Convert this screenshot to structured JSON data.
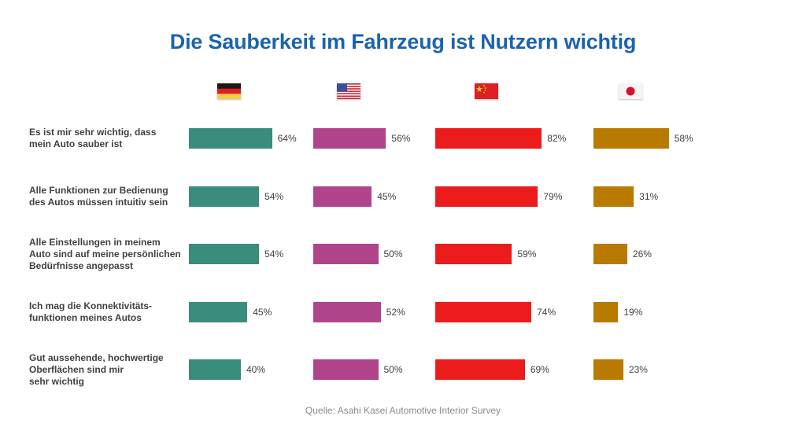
{
  "chart_data": {
    "type": "bar",
    "orientation": "horizontal",
    "title": "Die Sauberkeit im Fahrzeug ist Nutzern wichtig",
    "source": "Quelle: Asahi Kasei Automotive Interior Survey",
    "value_suffix": "%",
    "xlim": [
      0,
      100
    ],
    "grid": false,
    "categories": [
      "Es ist mir sehr wichtig, dass mein Auto sauber ist",
      "Alle Funktionen zur Bedienung des Autos müssen intuitiv sein",
      "Alle Einstellungen in meinem Auto sind auf meine persönlichen Bedürfnisse angepasst",
      "Ich mag die Konnektivitäts-funktionen meines Autos",
      "Gut aussehende, hochwertige Oberflächen sind mir sehr wichtig"
    ],
    "category_lines": [
      [
        "Es ist mir sehr wichtig, dass",
        "mein Auto sauber ist"
      ],
      [
        "Alle Funktionen zur Bedienung",
        "des Autos müssen intuitiv sein"
      ],
      [
        "Alle Einstellungen in meinem",
        "Auto sind auf meine persönlichen",
        "Bedürfnisse angepasst"
      ],
      [
        "Ich mag die Konnektivitäts-",
        "funktionen meines Autos"
      ],
      [
        "Gut aussehende, hochwertige",
        "Oberflächen sind mir",
        "sehr wichtig"
      ]
    ],
    "series": [
      {
        "name": "Deutschland",
        "icon": "germany-flag-icon",
        "color": "#3a8c7c",
        "values": [
          64,
          54,
          54,
          45,
          40
        ]
      },
      {
        "name": "USA",
        "icon": "usa-flag-icon",
        "color": "#b0448a",
        "values": [
          56,
          45,
          50,
          52,
          50
        ]
      },
      {
        "name": "China",
        "icon": "china-flag-icon",
        "color": "#ec1c1c",
        "values": [
          82,
          79,
          59,
          74,
          69
        ]
      },
      {
        "name": "Japan",
        "icon": "japan-flag-icon",
        "color": "#b87a00",
        "values": [
          58,
          31,
          26,
          19,
          23
        ]
      }
    ]
  }
}
